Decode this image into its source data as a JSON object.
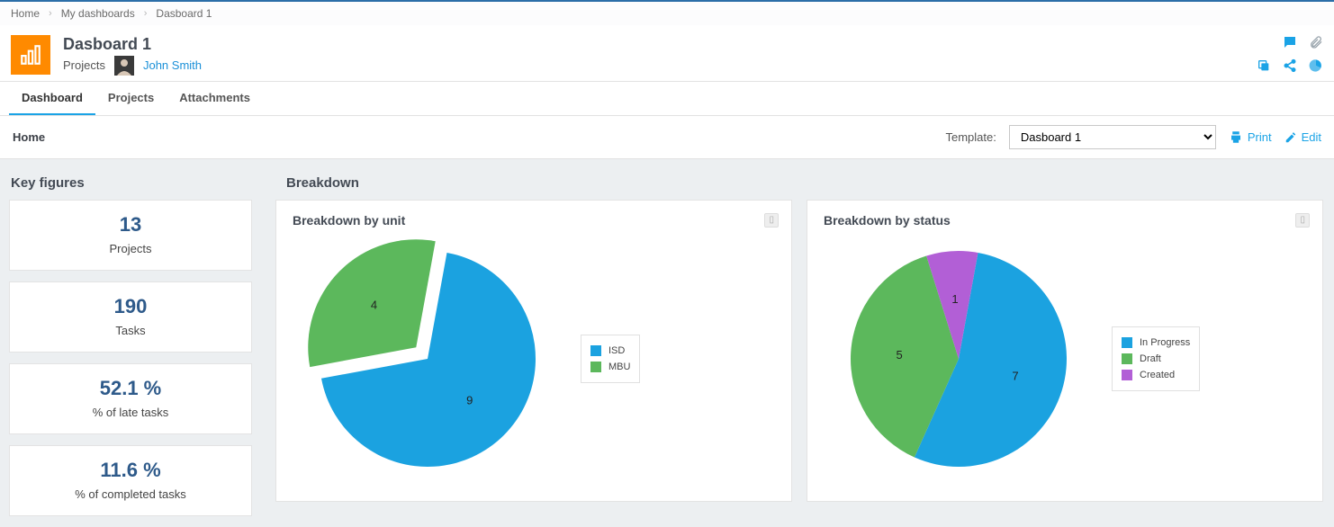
{
  "breadcrumb": {
    "home": "Home",
    "my_dash": "My dashboards",
    "current": "Dasboard 1"
  },
  "header": {
    "title": "Dasboard 1",
    "category": "Projects",
    "user": "John Smith"
  },
  "tabs": [
    {
      "label": "Dashboard",
      "active": true
    },
    {
      "label": "Projects",
      "active": false
    },
    {
      "label": "Attachments",
      "active": false
    }
  ],
  "control": {
    "home": "Home",
    "template_label": "Template:",
    "template_value": "Dasboard 1",
    "print": "Print",
    "edit": "Edit"
  },
  "key_figures": {
    "title": "Key figures",
    "cards": [
      {
        "value": "13",
        "label": "Projects"
      },
      {
        "value": "190",
        "label": "Tasks"
      },
      {
        "value": "52.1 %",
        "label": "% of late tasks"
      },
      {
        "value": "11.6 %",
        "label": "% of completed tasks"
      }
    ]
  },
  "breakdown": {
    "title": "Breakdown",
    "charts": [
      {
        "title": "Breakdown by unit",
        "type": "pie",
        "slices": [
          {
            "label": "ISD",
            "value": 9,
            "color": "#1ba2e0"
          },
          {
            "label": "MBU",
            "value": 4,
            "color": "#5cb85c",
            "pulled": 18
          }
        ],
        "radius": 120,
        "label_fontsize": 13,
        "background": "#ffffff"
      },
      {
        "title": "Breakdown by status",
        "type": "pie",
        "slices": [
          {
            "label": "In Progress",
            "value": 7,
            "color": "#1ba2e0"
          },
          {
            "label": "Draft",
            "value": 5,
            "color": "#5cb85c"
          },
          {
            "label": "Created",
            "value": 1,
            "color": "#b25fd6"
          }
        ],
        "radius": 120,
        "label_fontsize": 13,
        "background": "#ffffff"
      }
    ]
  },
  "colors": {
    "accent": "#1aa3e6",
    "orange": "#ff8a00"
  }
}
